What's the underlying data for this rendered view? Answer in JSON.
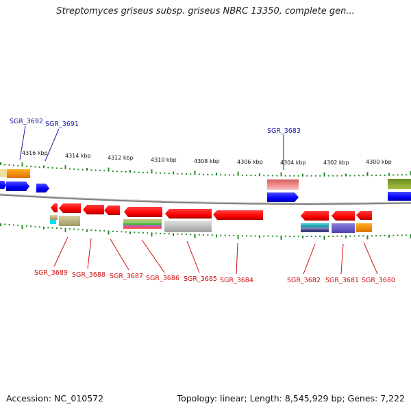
{
  "title": "Streptomyces griseus subsp. griseus NBRC 13350, complete gen...",
  "footer": {
    "accession": "Accession: NC_010572",
    "topology": "Topology: linear; Length: 8,545,929 bp; Genes: 7,222"
  },
  "ruler_labels": [
    "4316 kbp",
    "4314 kbp",
    "4312 kbp",
    "4310 kbp",
    "4308 kbp",
    "4306 kbp",
    "4304 kbp",
    "4302 kbp",
    "4300 kbp"
  ],
  "genes_top": [
    {
      "label": "SGR_3692",
      "color": "#1a1aa6"
    },
    {
      "label": "SGR_3691",
      "color": "#1a1aa6"
    },
    {
      "label": "SGR_3683",
      "color": "#1a1aa6"
    }
  ],
  "genes_bottom": [
    {
      "label": "SGR_3689",
      "color": "#cc1111"
    },
    {
      "label": "SGR_3688",
      "color": "#cc1111"
    },
    {
      "label": "SGR_3687",
      "color": "#cc1111"
    },
    {
      "label": "SGR_3686",
      "color": "#cc1111"
    },
    {
      "label": "SGR_3685",
      "color": "#cc1111"
    },
    {
      "label": "SGR_3684",
      "color": "#cc1111"
    },
    {
      "label": "SGR_3682",
      "color": "#cc1111"
    },
    {
      "label": "SGR_3681",
      "color": "#cc1111"
    },
    {
      "label": "SGR_3680",
      "color": "#cc1111"
    }
  ],
  "colors": {
    "forward_gene": "#0000ff",
    "reverse_gene": "#ff0000",
    "ruler_tick": "#228b22",
    "backbone": "#888888"
  }
}
